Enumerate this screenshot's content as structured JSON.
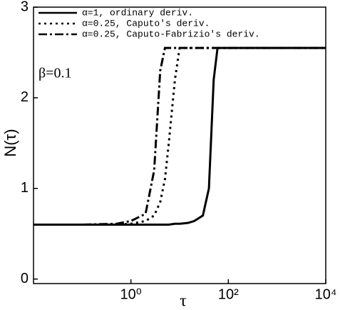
{
  "chart_data": {
    "type": "line",
    "xlabel": "τ",
    "ylabel": "N(τ)",
    "annotation": "β=0.1",
    "log_x": true,
    "xlim": [
      0.01,
      10000
    ],
    "xticks": [
      {
        "value": 1,
        "label": "10⁰"
      },
      {
        "value": 100,
        "label": "10²"
      },
      {
        "value": 10000,
        "label": "10⁴"
      }
    ],
    "ylim": [
      -0.05,
      3
    ],
    "yticks": [
      0,
      1,
      2,
      3
    ],
    "legend": "upper left",
    "x": [
      0.01,
      0.1,
      0.5,
      1,
      2,
      3,
      4,
      5,
      6,
      8,
      10,
      15,
      20,
      30,
      40,
      50,
      60,
      100,
      1000,
      10000
    ],
    "series": [
      {
        "name": "α=1, ordinary deriv.",
        "color": "#000000",
        "linestyle": "solid",
        "values": [
          0.6,
          0.6,
          0.6,
          0.6,
          0.6,
          0.6,
          0.6,
          0.6,
          0.6,
          0.61,
          0.61,
          0.62,
          0.64,
          0.7,
          1.0,
          2.2,
          2.55,
          2.55,
          2.55,
          2.55
        ]
      },
      {
        "name": "α=0.25, Caputo's deriv.",
        "color": "#000000",
        "linestyle": "dotted",
        "values": [
          0.6,
          0.6,
          0.6,
          0.61,
          0.64,
          0.7,
          0.85,
          1.1,
          1.5,
          2.2,
          2.55,
          2.55,
          2.55,
          2.55,
          2.55,
          2.55,
          2.55,
          2.55,
          2.55,
          2.55
        ]
      },
      {
        "name": "α=0.25, Caputo-Fabrizio's deriv.",
        "color": "#000000",
        "linestyle": "dashdot",
        "values": [
          0.6,
          0.6,
          0.61,
          0.64,
          0.72,
          1.2,
          2.3,
          2.55,
          2.55,
          2.55,
          2.55,
          2.55,
          2.55,
          2.55,
          2.55,
          2.55,
          2.55,
          2.55,
          2.55,
          2.55
        ]
      }
    ]
  }
}
